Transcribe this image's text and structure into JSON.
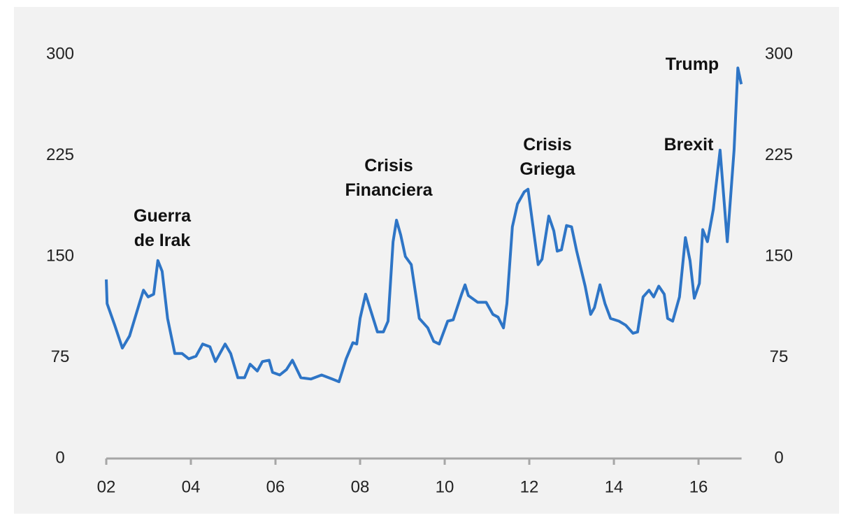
{
  "chart_data": {
    "type": "line",
    "x": [
      2.0,
      2.02,
      2.2,
      2.38,
      2.55,
      2.8,
      2.88,
      2.99,
      3.12,
      3.22,
      3.32,
      3.45,
      3.62,
      3.79,
      3.95,
      4.12,
      4.28,
      4.45,
      4.58,
      4.81,
      4.94,
      5.11,
      5.27,
      5.4,
      5.57,
      5.69,
      5.85,
      5.93,
      6.1,
      6.26,
      6.4,
      6.6,
      6.84,
      7.09,
      7.34,
      7.5,
      7.67,
      7.83,
      7.92,
      8.0,
      8.13,
      8.33,
      8.41,
      8.55,
      8.66,
      8.78,
      8.86,
      8.96,
      9.07,
      9.21,
      9.4,
      9.6,
      9.74,
      9.87,
      10.07,
      10.2,
      10.4,
      10.48,
      10.56,
      10.78,
      10.98,
      11.14,
      11.26,
      11.39,
      11.47,
      11.6,
      11.72,
      11.88,
      11.97,
      12.08,
      12.21,
      12.3,
      12.46,
      12.58,
      12.66,
      12.76,
      12.88,
      13.0,
      13.12,
      13.32,
      13.45,
      13.54,
      13.67,
      13.79,
      13.92,
      14.12,
      14.28,
      14.45,
      14.56,
      14.69,
      14.83,
      14.94,
      15.06,
      15.19,
      15.27,
      15.39,
      15.55,
      15.69,
      15.8,
      15.9,
      16.02,
      16.1,
      16.21,
      16.35,
      16.51,
      16.68,
      16.84,
      16.93,
      17.01
    ],
    "series": [
      {
        "color": "#2e75c6",
        "values": [
          133,
          115,
          99,
          82,
          91,
          117,
          125,
          120,
          122,
          147,
          139,
          104,
          78,
          78,
          74,
          76,
          85,
          83,
          72,
          85,
          78,
          60,
          60,
          70,
          65,
          72,
          73,
          64,
          62,
          66,
          73,
          60,
          59,
          62,
          59,
          57,
          74,
          86,
          85,
          104,
          122,
          102,
          94,
          94,
          102,
          161,
          177,
          166,
          150,
          144,
          104,
          97,
          87,
          85,
          102,
          103,
          122,
          129,
          121,
          116,
          116,
          107,
          105,
          97,
          115,
          172,
          189,
          198,
          200,
          174,
          144,
          148,
          180,
          169,
          154,
          155,
          173,
          172,
          154,
          128,
          107,
          112,
          129,
          115,
          104,
          102,
          99,
          93,
          94,
          120,
          125,
          120,
          128,
          122,
          104,
          102,
          120,
          164,
          147,
          119,
          130,
          170,
          161,
          185,
          229,
          161,
          229,
          290,
          278
        ]
      }
    ],
    "xlim": [
      2,
      17.1
    ],
    "xticks": [
      {
        "value": 2,
        "label": "02"
      },
      {
        "value": 4,
        "label": "04"
      },
      {
        "value": 6,
        "label": "06"
      },
      {
        "value": 8,
        "label": "08"
      },
      {
        "value": 10,
        "label": "10"
      },
      {
        "value": 12,
        "label": "12"
      },
      {
        "value": 14,
        "label": "14"
      },
      {
        "value": 16,
        "label": "16"
      }
    ],
    "ylim": [
      0,
      300
    ],
    "yticks": [
      0,
      75,
      150,
      225,
      300
    ],
    "y2lim": [
      0,
      300
    ],
    "y2ticks": [
      0,
      75,
      150,
      225,
      300
    ],
    "grid": false,
    "annotations": [
      {
        "lines": [
          "Guerra",
          "de Irak"
        ]
      },
      {
        "lines": [
          "Crisis",
          "Financiera"
        ]
      },
      {
        "lines": [
          "Crisis",
          "Griega"
        ]
      },
      {
        "lines": [
          "Brexit"
        ]
      },
      {
        "lines": [
          "Trump"
        ]
      }
    ]
  }
}
